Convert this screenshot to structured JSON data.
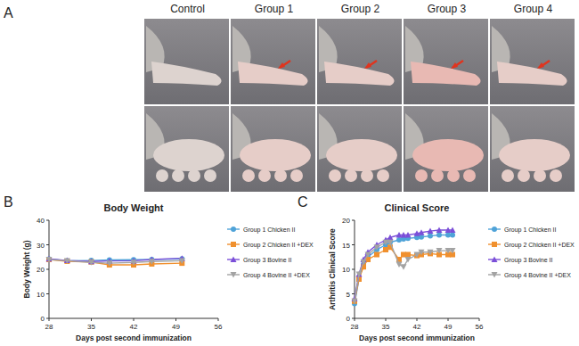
{
  "panel_labels": [
    "A",
    "B",
    "C"
  ],
  "photo_panel": {
    "columns": [
      "Control",
      "Group 1",
      "Group 2",
      "Group 3",
      "Group 4"
    ]
  },
  "chart_data": [
    {
      "type": "line",
      "title": "Body Weight",
      "x_label": "Days post second immunization",
      "y_label": "Body Weight (g)",
      "x": [
        28,
        31,
        35,
        38,
        42,
        45,
        50
      ],
      "xlim": [
        28,
        56
      ],
      "xticks": [
        28,
        35,
        42,
        49,
        56
      ],
      "ylim": [
        0,
        40
      ],
      "yticks": [
        0,
        10,
        20,
        30,
        40
      ],
      "grid": false,
      "legend": "right",
      "series": [
        {
          "name": "Group 1 Chicken II",
          "color": "#4fa3d8",
          "marker": "circle",
          "values": [
            24.2,
            23.5,
            23.6,
            23.8,
            23.9,
            24.0,
            24.3
          ]
        },
        {
          "name": "Group 2 Chicken II +DEX",
          "color": "#f0902e",
          "marker": "square",
          "values": [
            24.0,
            23.3,
            23.0,
            21.8,
            21.8,
            22.2,
            22.5
          ]
        },
        {
          "name": "Group 3 Bovine II",
          "color": "#7b4fd8",
          "marker": "triangle",
          "values": [
            24.3,
            23.6,
            23.2,
            23.4,
            23.5,
            24.0,
            24.5
          ]
        },
        {
          "name": "Group 4 Bovine II +DEX",
          "color": "#a3a3a3",
          "marker": "triangle-down",
          "values": [
            24.0,
            23.5,
            22.8,
            22.5,
            22.8,
            23.2,
            23.5
          ]
        }
      ]
    },
    {
      "type": "line",
      "title": "Clinical Score",
      "x_label": "Days post second immunization",
      "y_label": "Arthritis Clinical Score",
      "x": [
        28,
        29,
        30,
        31,
        33,
        35,
        36,
        38,
        39,
        40,
        42,
        43,
        45,
        47,
        49,
        50
      ],
      "xlim": [
        28,
        56
      ],
      "xticks": [
        28,
        35,
        42,
        49,
        56
      ],
      "ylim": [
        0,
        20
      ],
      "yticks": [
        0,
        5,
        10,
        15,
        20
      ],
      "grid": false,
      "legend": "right",
      "series": [
        {
          "name": "Group 1 Chicken II",
          "color": "#4fa3d8",
          "marker": "circle",
          "values": [
            3,
            8,
            11,
            12.5,
            14,
            15,
            15.5,
            16,
            16.2,
            16.3,
            16.5,
            16.6,
            16.8,
            17,
            17,
            17
          ]
        },
        {
          "name": "Group 2 Chicken II +DEX",
          "color": "#f0902e",
          "marker": "square",
          "values": [
            3.5,
            8,
            10.5,
            12,
            13,
            14,
            14.5,
            12,
            13,
            13,
            12.8,
            13,
            13.2,
            13,
            13,
            13
          ]
        },
        {
          "name": "Group 3 Bovine II",
          "color": "#7b4fd8",
          "marker": "triangle",
          "values": [
            4,
            9,
            12,
            13.5,
            15,
            16,
            16.5,
            17,
            17,
            17,
            17.3,
            17.5,
            17.8,
            18,
            18,
            18
          ]
        },
        {
          "name": "Group 4 Bovine II +DEX",
          "color": "#a3a3a3",
          "marker": "triangle-down",
          "values": [
            3.5,
            9,
            11.5,
            13,
            14.5,
            15.5,
            15.5,
            11,
            10.5,
            12,
            13,
            13.5,
            13.5,
            13.8,
            13.8,
            13.8
          ]
        }
      ]
    }
  ]
}
